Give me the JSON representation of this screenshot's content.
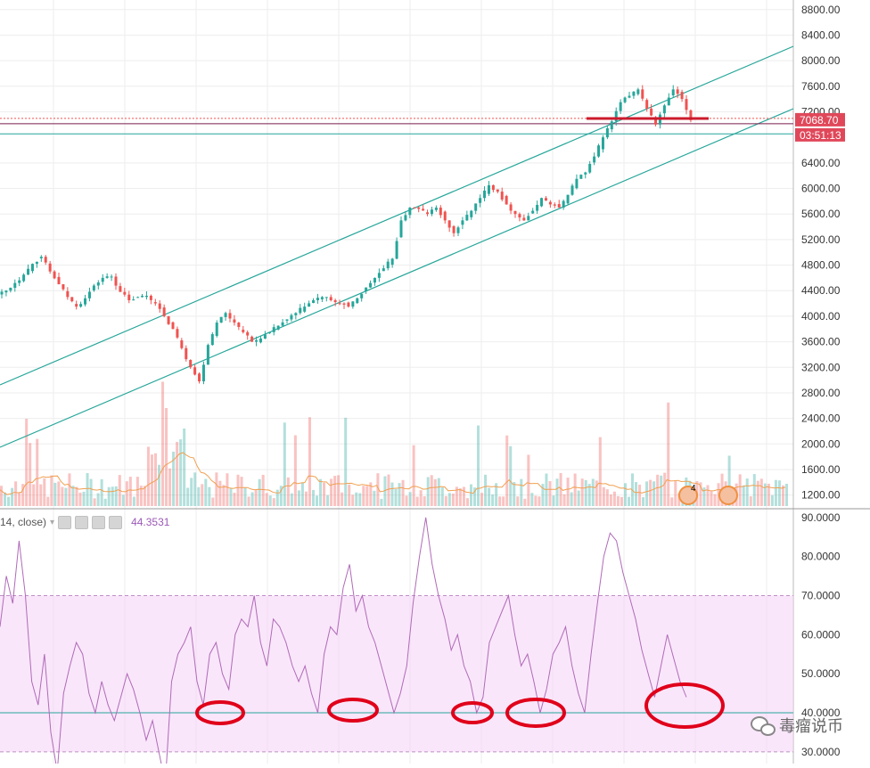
{
  "chart_data": {
    "type": "candlestick",
    "price_axis": {
      "ticks": [
        "8800.00",
        "8400.00",
        "8000.00",
        "7600.00",
        "7200.00",
        "6400.00",
        "6000.00",
        "5600.00",
        "5200.00",
        "4800.00",
        "4400.00",
        "4000.00",
        "3600.00",
        "3200.00",
        "2800.00",
        "2400.00",
        "2000.00",
        "1600.00",
        "1200.00"
      ],
      "ylim": [
        1000,
        8950
      ]
    },
    "last_price_label": "7068.70",
    "countdown_label": "03:51:13",
    "support_level": 6855,
    "candles_close": [
      4400,
      4520,
      4650,
      4820,
      4930,
      4700,
      4500,
      4300,
      4150,
      4280,
      4480,
      4600,
      4620,
      4380,
      4250,
      4300,
      4320,
      4200,
      4000,
      3800,
      3500,
      3200,
      2980,
      3550,
      3900,
      4050,
      3900,
      3750,
      3600,
      3650,
      3750,
      3850,
      3950,
      4050,
      4150,
      4250,
      4300,
      4250,
      4200,
      4150,
      4280,
      4450,
      4600,
      4750,
      4900,
      5500,
      5700,
      5680,
      5600,
      5700,
      5500,
      5300,
      5500,
      5650,
      5850,
      6050,
      5950,
      5750,
      5600,
      5500,
      5650,
      5850,
      5750,
      5700,
      5900,
      6150,
      6250,
      6500,
      6800,
      7050,
      7350,
      7450,
      7550,
      7250,
      7000,
      7300,
      7550,
      7400,
      7068.7
    ],
    "volume_max_label": "",
    "rsi": {
      "label_suffix": "14, close)",
      "value_label": "44.3531",
      "axis_ticks": [
        "90.0000",
        "80.0000",
        "70.0000",
        "60.0000",
        "50.0000",
        "40.0000",
        "30.0000"
      ],
      "upper_band": 70,
      "lower_band": 30,
      "reference_level": 40,
      "ylim": [
        27,
        92
      ],
      "values": [
        62,
        75,
        68,
        84,
        70,
        48,
        42,
        55,
        35,
        25,
        45,
        52,
        58,
        55,
        45,
        40,
        48,
        42,
        38,
        44,
        50,
        46,
        40,
        33,
        38,
        30,
        22,
        48,
        55,
        58,
        62,
        48,
        42,
        55,
        58,
        50,
        46,
        60,
        64,
        62,
        70,
        58,
        52,
        64,
        62,
        58,
        52,
        48,
        52,
        45,
        40,
        55,
        62,
        60,
        72,
        78,
        66,
        70,
        62,
        58,
        52,
        46,
        40,
        45,
        52,
        68,
        80,
        90,
        78,
        70,
        64,
        56,
        60,
        52,
        48,
        40,
        44,
        58,
        62,
        66,
        70,
        60,
        52,
        55,
        48,
        40,
        46,
        55,
        58,
        62,
        52,
        45,
        40,
        55,
        68,
        80,
        86,
        84,
        76,
        70,
        64,
        56,
        50,
        44,
        52,
        60,
        54,
        48,
        44
      ]
    },
    "annotations": [
      "circle",
      "circle",
      "circle",
      "circle",
      "circle"
    ],
    "badges": [
      {
        "text": "4"
      },
      {
        "text": ""
      }
    ]
  },
  "colors": {
    "bull": "#26a69a",
    "bear": "#ef5350",
    "channel": "#26a69a",
    "volume_ma": "#f0a050",
    "rsi_line": "#b06ab8",
    "rsi_band": "#f5d6f7",
    "price_label_bg": "#e0485a",
    "annotation": "#e0001a",
    "grid": "#eeeeee"
  },
  "watermark": {
    "text": "毒瘤说币",
    "icon": "wechat-icon"
  }
}
